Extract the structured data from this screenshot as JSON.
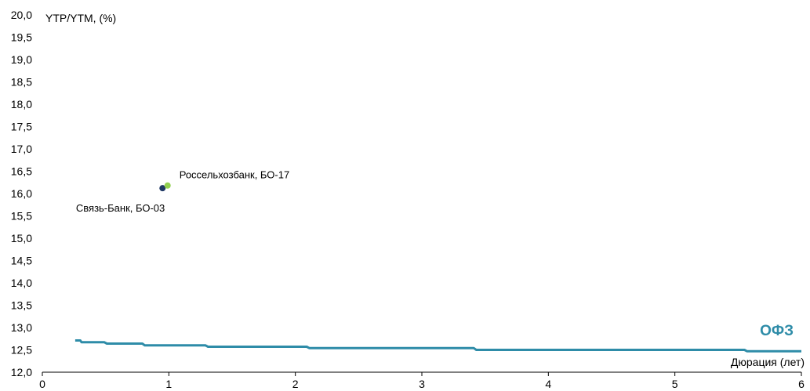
{
  "chart_data": {
    "type": "scatter",
    "ylabel": "YTP/YTM, (%)",
    "xlabel": "Дюрация (лет)",
    "xlim": [
      0,
      6
    ],
    "ylim": [
      12.0,
      20.0
    ],
    "x_ticks": [
      "0",
      "1",
      "2",
      "3",
      "4",
      "5",
      "6"
    ],
    "y_ticks": [
      "12,0",
      "12,5",
      "13,0",
      "13,5",
      "14,0",
      "14,5",
      "15,0",
      "15,5",
      "16,0",
      "16,5",
      "17,0",
      "17,5",
      "18,0",
      "18,5",
      "19,0",
      "19,5",
      "20,0"
    ],
    "points": [
      {
        "label": "Связь-Банк, БО-03",
        "x": 0.95,
        "y": 16.12,
        "color": "#1f3864"
      },
      {
        "label": "Россельхозбанк, БО-17",
        "x": 0.99,
        "y": 16.18,
        "color": "#92d050"
      }
    ],
    "series": [
      {
        "name": "ОФЗ",
        "color": "#2e8ca8",
        "x": [
          0.26,
          0.3,
          0.31,
          0.49,
          0.51,
          0.79,
          0.81,
          1.29,
          1.31,
          2.09,
          2.11,
          3.41,
          3.43,
          5.55,
          5.57,
          6.0
        ],
        "y": [
          12.71,
          12.71,
          12.67,
          12.67,
          12.64,
          12.64,
          12.6,
          12.6,
          12.57,
          12.57,
          12.54,
          12.54,
          12.5,
          12.5,
          12.47,
          12.47
        ]
      }
    ]
  }
}
